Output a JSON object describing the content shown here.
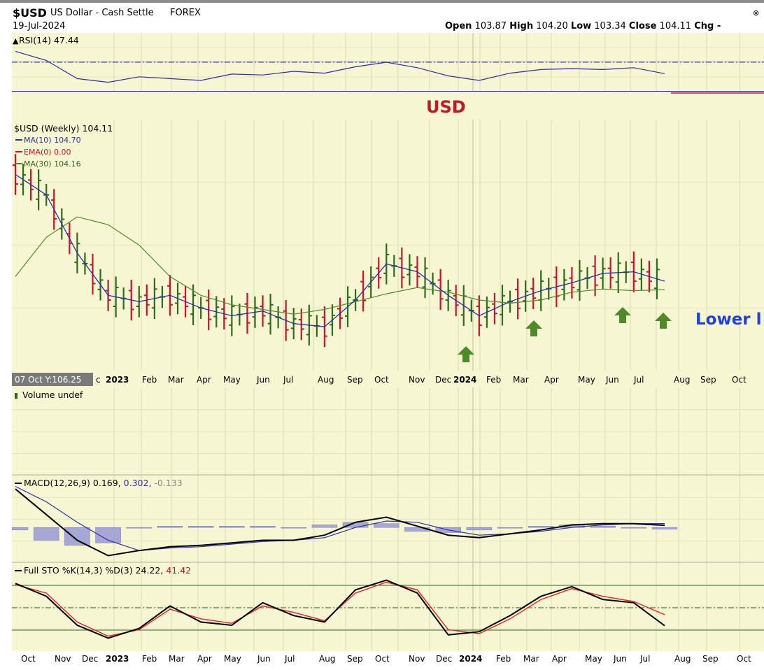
{
  "header": {
    "symbol": "$USD",
    "name": "US Dollar - Cash Settle",
    "exchange": "FOREX",
    "date": "19-Jul-2024",
    "open_label": "Open",
    "open": "103.87",
    "high_label": "High",
    "high": "104.20",
    "low_label": "Low",
    "low": "103.34",
    "close_label": "Close",
    "close": "104.11",
    "chg_label": "Chg -"
  },
  "rsi_panel": {
    "label": "RSI(14) 47.44",
    "title_overlay": "USD"
  },
  "price_panel": {
    "label": "$USD (Weekly) 104.11",
    "legend": [
      "MA(10) 104.70",
      "EMA(0) 0.00",
      "MA(30) 104.16"
    ],
    "annotation": "Lower l",
    "hover_label": "07 Oct Y:106.25"
  },
  "volume_panel": {
    "label": "Volume undef"
  },
  "macd_panel": {
    "label": "MACD(12,26,9)",
    "v1": "0.169,",
    "v2": "0.302,",
    "v3": "-0.133"
  },
  "sto_panel": {
    "label": "Full STO %K(14,3) %D(3)",
    "v1": "24.22,",
    "v2": "41.42"
  },
  "colors": {
    "background": "#f7f6d2",
    "up": "#2e6b1e",
    "down": "#c0182a",
    "ma10": "#2b2fa0",
    "ma30": "#4f8a2a",
    "arrow": "#4f8a2a",
    "annotation": "#1f3fe0",
    "overlay": "#c0182a"
  },
  "chart_data": [
    {
      "type": "line",
      "title": "RSI(14)",
      "x": [
        "Oct 2022",
        "Nov",
        "Dec",
        "Jan 2023",
        "Feb",
        "Mar",
        "Apr",
        "May",
        "Jun",
        "Jul",
        "Aug",
        "Sep",
        "Oct",
        "Nov",
        "Dec",
        "Jan 2024",
        "Feb",
        "Mar",
        "Apr",
        "May",
        "Jun",
        "Jul 2024"
      ],
      "series": [
        {
          "name": "RSI(14)",
          "values": [
            72,
            62,
            42,
            38,
            44,
            42,
            40,
            47,
            46,
            50,
            48,
            55,
            60,
            54,
            45,
            40,
            48,
            52,
            53,
            52,
            54,
            47.44
          ]
        }
      ],
      "ylim": [
        0,
        100
      ]
    },
    {
      "type": "line",
      "title": "$USD (Weekly) 104.11",
      "x": [
        "Oct 2022",
        "Nov",
        "Dec",
        "Jan 2023",
        "Feb",
        "Mar",
        "Apr",
        "May",
        "Jun",
        "Jul",
        "Aug",
        "Sep",
        "Oct",
        "Nov",
        "Dec",
        "Jan 2024",
        "Feb",
        "Mar",
        "Apr",
        "May",
        "Jun",
        "Jul 2024"
      ],
      "series": [
        {
          "name": "MA(10) 104.70",
          "values": [
            111.5,
            110.2,
            106.5,
            103.8,
            103.4,
            103.8,
            103.0,
            102.5,
            102.8,
            102.0,
            101.8,
            103.5,
            105.8,
            105.3,
            103.8,
            102.5,
            103.4,
            104.1,
            104.6,
            105.2,
            105.3,
            104.7
          ]
        },
        {
          "name": "MA(30) 104.16",
          "values": [
            105.0,
            107.5,
            108.8,
            108.3,
            107.0,
            105.0,
            103.8,
            103.2,
            102.9,
            102.6,
            102.9,
            103.4,
            103.9,
            104.3,
            104.0,
            103.5,
            103.3,
            103.5,
            104.0,
            104.2,
            104.1,
            104.16
          ]
        }
      ],
      "ylim": [
        99,
        115
      ]
    },
    {
      "type": "line",
      "title": "MACD(12,26,9)",
      "series": [
        {
          "name": "MACD",
          "values": [
            3.0,
            1.0,
            -1.0,
            -2.2,
            -1.8,
            -1.5,
            -1.4,
            -1.2,
            -1.0,
            -1.0,
            -0.6,
            0.4,
            0.8,
            0.1,
            -0.6,
            -0.8,
            -0.5,
            -0.2,
            0.2,
            0.3,
            0.3,
            0.169
          ]
        },
        {
          "name": "Signal",
          "values": [
            3.2,
            2.0,
            0.4,
            -1.0,
            -1.8,
            -1.6,
            -1.5,
            -1.3,
            -1.1,
            -1.0,
            -0.8,
            0.0,
            0.5,
            0.4,
            -0.2,
            -0.6,
            -0.5,
            -0.3,
            0.0,
            0.2,
            0.3,
            0.302
          ]
        },
        {
          "name": "Histogram",
          "values": [
            -0.2,
            -1.0,
            -1.4,
            -1.2,
            0.0,
            0.1,
            0.1,
            0.1,
            0.1,
            0.0,
            0.2,
            0.4,
            0.3,
            -0.3,
            -0.4,
            -0.2,
            0.0,
            0.1,
            0.2,
            0.1,
            0.0,
            -0.133
          ]
        }
      ]
    },
    {
      "type": "line",
      "title": "Full STO %K(14,3) %D(3)",
      "series": [
        {
          "name": "%K",
          "values": [
            90,
            70,
            25,
            5,
            20,
            55,
            30,
            25,
            60,
            40,
            30,
            80,
            95,
            75,
            10,
            15,
            40,
            70,
            85,
            65,
            60,
            24.22
          ]
        },
        {
          "name": "%D",
          "values": [
            88,
            75,
            30,
            8,
            18,
            50,
            35,
            28,
            55,
            45,
            32,
            75,
            92,
            80,
            18,
            12,
            35,
            65,
            82,
            70,
            62,
            41.42
          ]
        }
      ],
      "ylim": [
        0,
        100
      ]
    }
  ],
  "x_axis_top": [
    "c",
    "2023",
    "Feb",
    "Mar",
    "Apr",
    "May",
    "Jun",
    "Jul",
    "Aug",
    "Sep",
    "Oct",
    "Nov",
    "Dec",
    "2024",
    "Feb",
    "Mar",
    "Apr",
    "May",
    "Jun",
    "Jul",
    "Aug",
    "Sep",
    "Oct"
  ],
  "x_axis_bottom": [
    "Oct",
    "Nov",
    "Dec",
    "2023",
    "Feb",
    "Mar",
    "Apr",
    "May",
    "Jun",
    "Jul",
    "Aug",
    "Sep",
    "Oct",
    "Nov",
    "Dec",
    "2024",
    "Feb",
    "Mar",
    "Apr",
    "May",
    "Jun",
    "Jul",
    "Aug",
    "Sep",
    "Oct"
  ]
}
